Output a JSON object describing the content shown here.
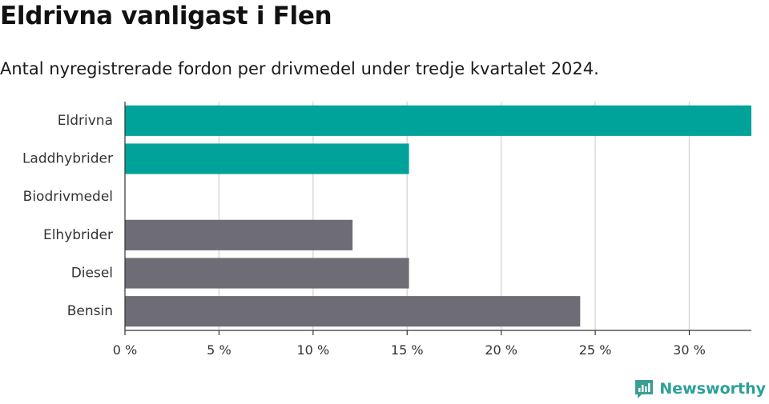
{
  "title": "Eldrivna vanligast i Flen",
  "subtitle": "Antal nyregistrerade fordon per drivmedel under tredje kvartalet 2024.",
  "brand": {
    "name": "Newsworthy",
    "icon": "newsworthy-logo-icon",
    "color": "#3a9e96"
  },
  "colors": {
    "highlight": "#00a39a",
    "base": "#6e6d75",
    "grid": "#d9d9d9",
    "axis": "#333333"
  },
  "chart_data": {
    "type": "bar",
    "orientation": "horizontal",
    "categories": [
      "Eldrivna",
      "Laddhybrider",
      "Biodrivmedel",
      "Elhybrider",
      "Diesel",
      "Bensin"
    ],
    "values": [
      33.3,
      15.1,
      0,
      12.1,
      15.1,
      24.2
    ],
    "highlighted": [
      true,
      true,
      false,
      false,
      false,
      false
    ],
    "xlim": [
      0,
      33.3
    ],
    "xticks": [
      0,
      5,
      10,
      15,
      20,
      25,
      30
    ],
    "xtick_labels": [
      "0 %",
      "5 %",
      "10 %",
      "15 %",
      "20 %",
      "25 %",
      "30 %"
    ],
    "grid": true,
    "legend": "none"
  }
}
